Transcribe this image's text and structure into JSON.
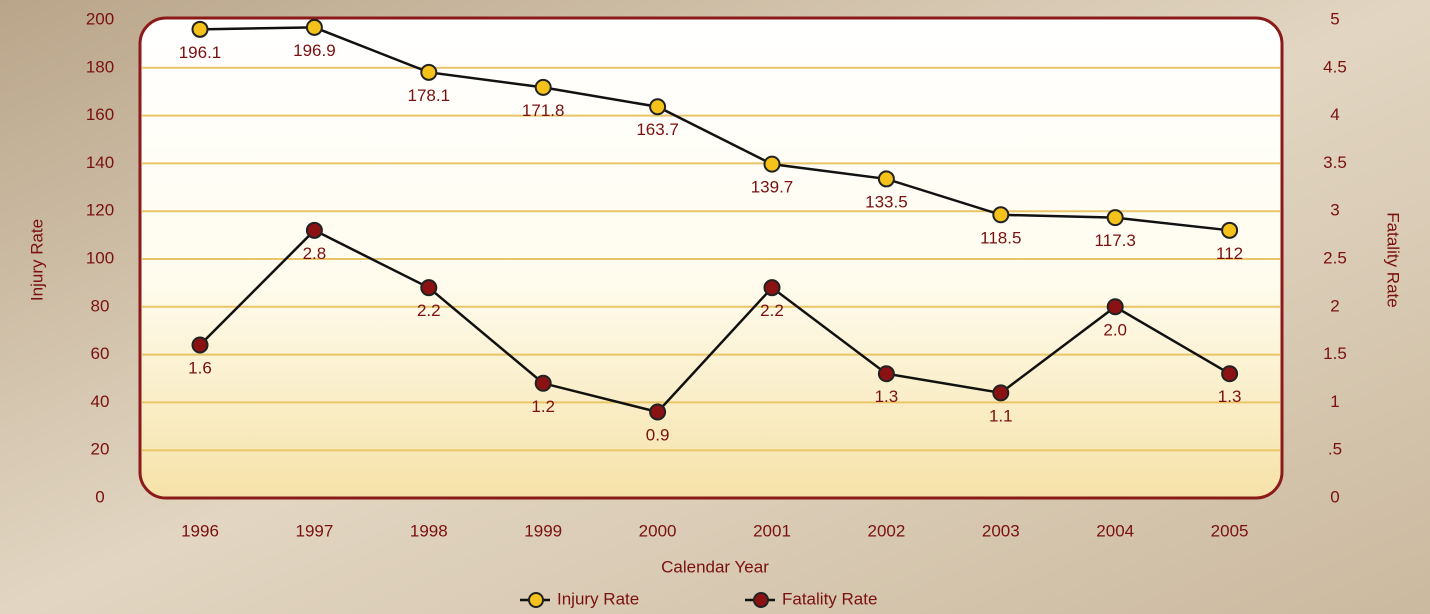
{
  "chart_data": {
    "type": "line",
    "x_label": "Calendar Year",
    "y_label": "Injury Rate",
    "y2_label": "Fatality Rate",
    "categories": [
      "1996",
      "1997",
      "1998",
      "1999",
      "2000",
      "2001",
      "2002",
      "2003",
      "2004",
      "2005"
    ],
    "series": [
      {
        "name": "Injury Rate",
        "color": "#f5c21b",
        "values": [
          196.1,
          196.9,
          178.1,
          171.8,
          163.7,
          139.7,
          133.5,
          118.5,
          117.3,
          112
        ]
      },
      {
        "name": "Fatality Rate",
        "color": "#8b1212",
        "axis": "y2",
        "values": [
          1.6,
          2.8,
          2.2,
          1.2,
          0.9,
          2.2,
          1.3,
          1.1,
          2.0,
          1.3
        ],
        "value_labels": [
          "1.6",
          "2.8",
          "2.2",
          "1.2",
          "0.9",
          "2.2",
          "1.3",
          "1.1",
          "2.0",
          "1.3"
        ]
      }
    ],
    "ylim": [
      0,
      200
    ],
    "yticks": [
      0,
      20,
      40,
      60,
      80,
      100,
      120,
      140,
      160,
      180,
      200
    ],
    "y2lim": [
      0,
      5
    ],
    "y2ticks": [
      0,
      {
        "value": 0.5,
        "label": ".5"
      },
      1,
      1.5,
      2,
      2.5,
      3,
      3.5,
      4,
      4.5,
      5
    ],
    "grid": true,
    "legend": "bottom"
  }
}
